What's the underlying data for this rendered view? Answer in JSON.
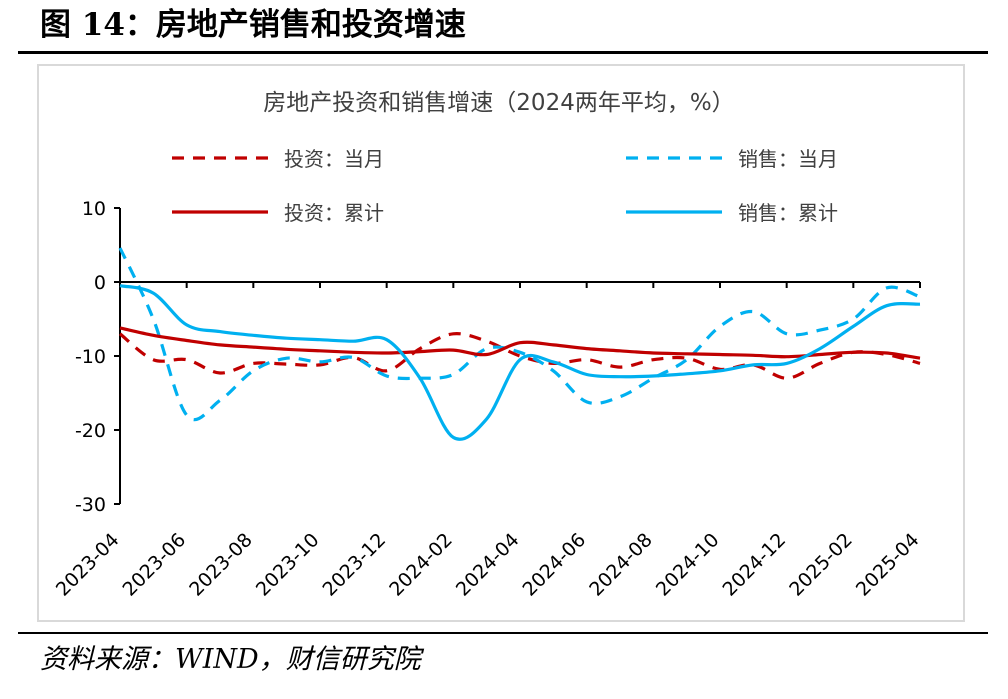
{
  "figure_title": "图 14：房地产销售和投资增速",
  "source": "资料来源：WIND，财信研究院",
  "chart_data": {
    "type": "line",
    "title": "房地产投资和销售增速（2024两年平均，%）",
    "xlabel": "",
    "ylabel": "",
    "ylim": [
      -30,
      10
    ],
    "yticks": [
      10,
      0,
      -10,
      -20,
      -30
    ],
    "x_ticks": [
      "2023-04",
      "2023-06",
      "2023-08",
      "2023-10",
      "2023-12",
      "2024-02",
      "2024-04",
      "2024-06",
      "2024-08",
      "2024-10",
      "2024-12",
      "2025-02",
      "2025-04"
    ],
    "x": [
      "2023-04",
      "2023-05",
      "2023-06",
      "2023-07",
      "2023-08",
      "2023-09",
      "2023-10",
      "2023-11",
      "2023-12",
      "2024-01",
      "2024-02",
      "2024-03",
      "2024-04",
      "2024-05",
      "2024-06",
      "2024-07",
      "2024-08",
      "2024-09",
      "2024-10",
      "2024-11",
      "2024-12",
      "2025-01",
      "2025-02",
      "2025-03",
      "2025-04"
    ],
    "legend_position": "top",
    "grid": false,
    "series": [
      {
        "name": "投资：当月",
        "color": "#c00000",
        "style": "dashed",
        "values": [
          -7.0,
          -10.5,
          -10.5,
          -12.3,
          -11.0,
          -11.1,
          -11.2,
          -10.2,
          -12.0,
          -9.0,
          -7.0,
          -8.0,
          -10.0,
          -11.0,
          -10.5,
          -11.5,
          -10.5,
          -10.3,
          -11.8,
          -11.2,
          -13.0,
          -11.0,
          -9.5,
          -9.8,
          -11.0
        ]
      },
      {
        "name": "销售：当月",
        "color": "#00b0f0",
        "style": "dashed",
        "values": [
          4.6,
          -5.0,
          -18.0,
          -16.0,
          -12.0,
          -10.3,
          -10.8,
          -10.2,
          -12.7,
          -13.0,
          -12.5,
          -9.0,
          -9.5,
          -12.0,
          -16.2,
          -15.5,
          -13.0,
          -10.5,
          -6.0,
          -4.0,
          -7.0,
          -6.5,
          -5.0,
          -0.8,
          -2.0
        ]
      },
      {
        "name": "投资：累计",
        "color": "#c00000",
        "style": "solid",
        "values": [
          -6.2,
          -7.2,
          -7.9,
          -8.5,
          -8.8,
          -9.1,
          -9.3,
          -9.5,
          -9.6,
          -9.4,
          -9.2,
          -9.8,
          -8.2,
          -8.5,
          -9.0,
          -9.3,
          -9.6,
          -9.7,
          -9.8,
          -9.9,
          -10.1,
          -9.8,
          -9.5,
          -9.6,
          -10.3
        ]
      },
      {
        "name": "销售：累计",
        "color": "#00b0f0",
        "style": "solid",
        "values": [
          -0.5,
          -1.5,
          -5.8,
          -6.7,
          -7.2,
          -7.6,
          -7.8,
          -8.0,
          -7.8,
          -13.0,
          -21.0,
          -18.5,
          -10.5,
          -10.8,
          -12.5,
          -12.8,
          -12.7,
          -12.4,
          -12.0,
          -11.2,
          -11.0,
          -9.0,
          -6.0,
          -3.2,
          -3.0
        ]
      }
    ]
  }
}
